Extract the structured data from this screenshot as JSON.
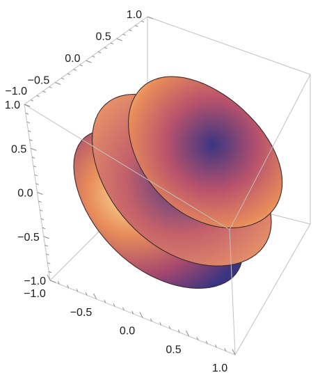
{
  "chart_data": {
    "type": "3d-surface",
    "axes": {
      "x": {
        "range": [
          -1,
          1
        ],
        "ticks": [
          -1.0,
          -0.5,
          0.0,
          0.5,
          1.0
        ],
        "tick_labels": [
          "−1.0",
          "−0.5",
          "0.0",
          "0.5",
          "1.0"
        ]
      },
      "y": {
        "range": [
          -1,
          1
        ],
        "ticks": [
          -1.0,
          -0.5,
          0.0,
          0.5,
          1.0
        ],
        "tick_labels": [
          "−1.0",
          "−0.5",
          "0.0",
          "0.5",
          "1.0"
        ]
      },
      "z": {
        "range": [
          -1,
          1
        ],
        "ticks": [
          -1.0,
          -0.5,
          0.0,
          0.5,
          1.0
        ],
        "tick_labels": [
          "−1.0",
          "−0.5",
          "0.0",
          "0.5",
          "1.0"
        ]
      }
    },
    "bounding_box": true,
    "slices": [
      {
        "y": -0.5,
        "shape": "disk",
        "radius": 0.9
      },
      {
        "y": 0.0,
        "shape": "disk",
        "radius": 1.0
      },
      {
        "y": 0.5,
        "shape": "disk",
        "radius": 0.9
      }
    ],
    "color_scheme": [
      "#3b3581",
      "#a7486e",
      "#e07f55",
      "#ffe8a0"
    ],
    "grid": false
  }
}
